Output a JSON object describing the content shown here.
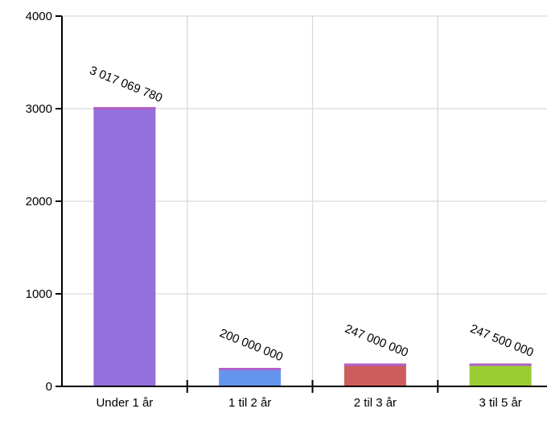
{
  "chart_data": {
    "type": "bar",
    "categories": [
      "Under 1 år",
      "1 til 2 år",
      "2 til 3 år",
      "3 til 5 år"
    ],
    "values": [
      3017.06978,
      200,
      247,
      247.5
    ],
    "data_labels": [
      "3 017 069 780",
      "200 000 000",
      "247 000 000",
      "247 500 000"
    ],
    "colors": [
      "#9370db",
      "#6495ed",
      "#cd5c5c",
      "#9acd32"
    ],
    "cap_color": "#b060c8",
    "yticks": [
      "0",
      "1000",
      "2000",
      "3000",
      "4000"
    ],
    "ylim": [
      0,
      4000
    ],
    "grid": true,
    "title": "",
    "xlabel": "",
    "ylabel": ""
  }
}
